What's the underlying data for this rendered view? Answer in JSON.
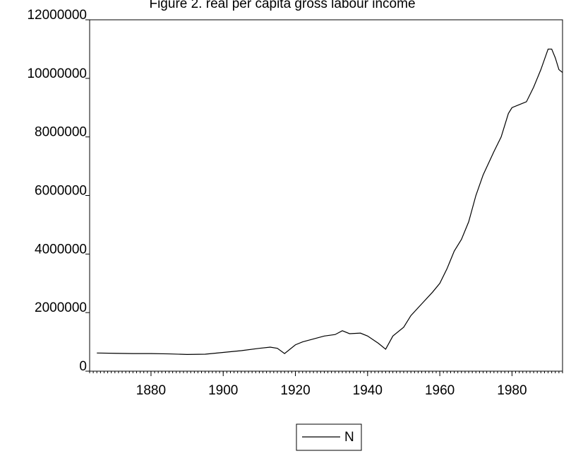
{
  "chart_data": {
    "type": "line",
    "title": "Figure 2. real per capita gross labour income",
    "x": [
      1865,
      1870,
      1875,
      1880,
      1885,
      1890,
      1895,
      1900,
      1905,
      1910,
      1913,
      1915,
      1917,
      1920,
      1922,
      1925,
      1928,
      1931,
      1933,
      1935,
      1938,
      1940,
      1943,
      1945,
      1947,
      1950,
      1952,
      1955,
      1958,
      1960,
      1962,
      1964,
      1966,
      1968,
      1970,
      1972,
      1975,
      1977,
      1979,
      1980,
      1982,
      1984,
      1986,
      1988,
      1990,
      1991,
      1992,
      1993,
      1994
    ],
    "series": [
      {
        "name": "N",
        "color": "#000000",
        "values": [
          620000,
          610000,
          600000,
          600000,
          590000,
          570000,
          580000,
          640000,
          700000,
          780000,
          820000,
          780000,
          600000,
          900000,
          1000000,
          1100000,
          1200000,
          1250000,
          1380000,
          1280000,
          1300000,
          1200000,
          950000,
          750000,
          1200000,
          1500000,
          1900000,
          2300000,
          2700000,
          3000000,
          3500000,
          4100000,
          4500000,
          5100000,
          6000000,
          6700000,
          7500000,
          8000000,
          8800000,
          9000000,
          9100000,
          9200000,
          9700000,
          10300000,
          11000000,
          11000000,
          10700000,
          10300000,
          10200000
        ]
      }
    ],
    "xlim": [
      1863,
      1994
    ],
    "xticks": [
      1880,
      1900,
      1920,
      1940,
      1960,
      1980
    ],
    "ylim": [
      0,
      12000000
    ],
    "yticks": [
      0,
      2000000,
      4000000,
      6000000,
      8000000,
      10000000,
      12000000
    ],
    "legend": "bottom"
  }
}
